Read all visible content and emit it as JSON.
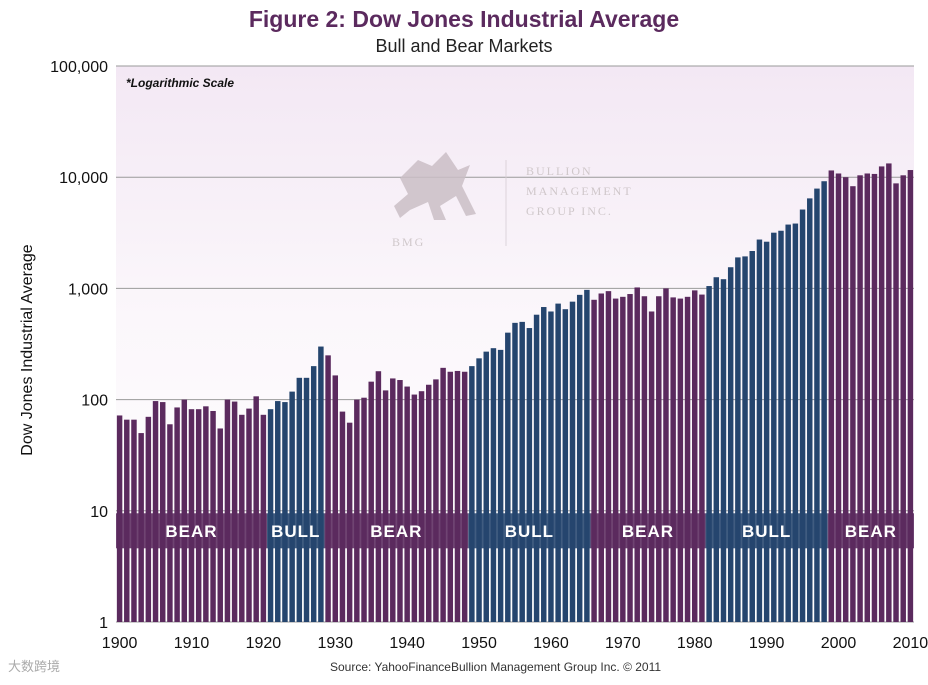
{
  "chart_data": {
    "type": "bar",
    "title": "Figure 2: Dow Jones Industrial Average",
    "subtitle": "Bull and Bear Markets",
    "ylabel": "Dow Jones Industrial Average",
    "xlabel": "",
    "scale": "log",
    "ylim": [
      1,
      100000
    ],
    "note": "*Logarithmic Scale",
    "source": "Source: YahooFinanceBullion  Management Group Inc. © 2011",
    "y_ticks": [
      {
        "value": 1,
        "label": "1"
      },
      {
        "value": 10,
        "label": "10"
      },
      {
        "value": 100,
        "label": "100"
      },
      {
        "value": 1000,
        "label": "1,000"
      },
      {
        "value": 10000,
        "label": "10,000"
      },
      {
        "value": 100000,
        "label": "100,000"
      }
    ],
    "x_ticks": [
      1900,
      1910,
      1920,
      1930,
      1940,
      1950,
      1960,
      1970,
      1980,
      1990,
      2000,
      2010
    ],
    "x_tick_labels": [
      "1900",
      "1910",
      "1920",
      "1930",
      "1940",
      "1950",
      "1960",
      "1970",
      "1980",
      "1990",
      "2000",
      "2010"
    ],
    "x_start": 1900,
    "x_end": 2011,
    "years": [
      1900,
      1901,
      1902,
      1903,
      1904,
      1905,
      1906,
      1907,
      1908,
      1909,
      1910,
      1911,
      1912,
      1913,
      1914,
      1915,
      1916,
      1917,
      1918,
      1919,
      1920,
      1921,
      1922,
      1923,
      1924,
      1925,
      1926,
      1927,
      1928,
      1929,
      1930,
      1931,
      1932,
      1933,
      1934,
      1935,
      1936,
      1937,
      1938,
      1939,
      1940,
      1941,
      1942,
      1943,
      1944,
      1945,
      1946,
      1947,
      1948,
      1949,
      1950,
      1951,
      1952,
      1953,
      1954,
      1955,
      1956,
      1957,
      1958,
      1959,
      1960,
      1961,
      1962,
      1963,
      1964,
      1965,
      1966,
      1967,
      1968,
      1969,
      1970,
      1971,
      1972,
      1973,
      1974,
      1975,
      1976,
      1977,
      1978,
      1979,
      1980,
      1981,
      1982,
      1983,
      1984,
      1985,
      1986,
      1987,
      1988,
      1989,
      1990,
      1991,
      1992,
      1993,
      1994,
      1995,
      1996,
      1997,
      1998,
      1999,
      2000,
      2001,
      2002,
      2003,
      2004,
      2005,
      2006,
      2007,
      2008,
      2009,
      2010
    ],
    "values": [
      72,
      66,
      66,
      50,
      70,
      97,
      95,
      60,
      85,
      100,
      82,
      82,
      87,
      79,
      55,
      100,
      96,
      73,
      83,
      107,
      73,
      82,
      97,
      95,
      118,
      157,
      157,
      200,
      300,
      250,
      165,
      78,
      62,
      100,
      104,
      145,
      180,
      121,
      155,
      150,
      131,
      111,
      119,
      136,
      152,
      193,
      178,
      181,
      178,
      200,
      235,
      270,
      290,
      280,
      400,
      490,
      500,
      440,
      580,
      680,
      620,
      730,
      650,
      760,
      875,
      970,
      790,
      900,
      945,
      810,
      840,
      890,
      1020,
      850,
      620,
      850,
      1000,
      830,
      810,
      840,
      960,
      880,
      1050,
      1260,
      1210,
      1550,
      1900,
      1940,
      2170,
      2750,
      2630,
      3170,
      3300,
      3750,
      3830,
      5120,
      6450,
      7900,
      9200,
      11500,
      10800,
      10000,
      8300,
      10400,
      10800,
      10700,
      12500,
      13300,
      8800,
      10400,
      11600
    ],
    "bands": [
      {
        "label": "BEAR",
        "phase": "bear",
        "start": 1900,
        "end": 1921
      },
      {
        "label": "BULL",
        "phase": "bull",
        "start": 1921,
        "end": 1929
      },
      {
        "label": "BEAR",
        "phase": "bear",
        "start": 1929,
        "end": 1949
      },
      {
        "label": "BULL",
        "phase": "bull",
        "start": 1949,
        "end": 1966
      },
      {
        "label": "BEAR",
        "phase": "bear",
        "start": 1966,
        "end": 1982
      },
      {
        "label": "BULL",
        "phase": "bull",
        "start": 1982,
        "end": 1999
      },
      {
        "label": "BEAR",
        "phase": "bear",
        "start": 1999,
        "end": 2011
      }
    ],
    "colors": {
      "bear": "#5b2a5e",
      "bull": "#25456e",
      "background_top": "#f3e8f4",
      "background_bottom": "#ffffff",
      "grid": "#9a9a9a"
    }
  },
  "logo": {
    "initials": "BMG",
    "line1": "BULLION",
    "line2": "MANAGEMENT",
    "line3": "GROUP INC."
  },
  "watermark": "大数跨境"
}
